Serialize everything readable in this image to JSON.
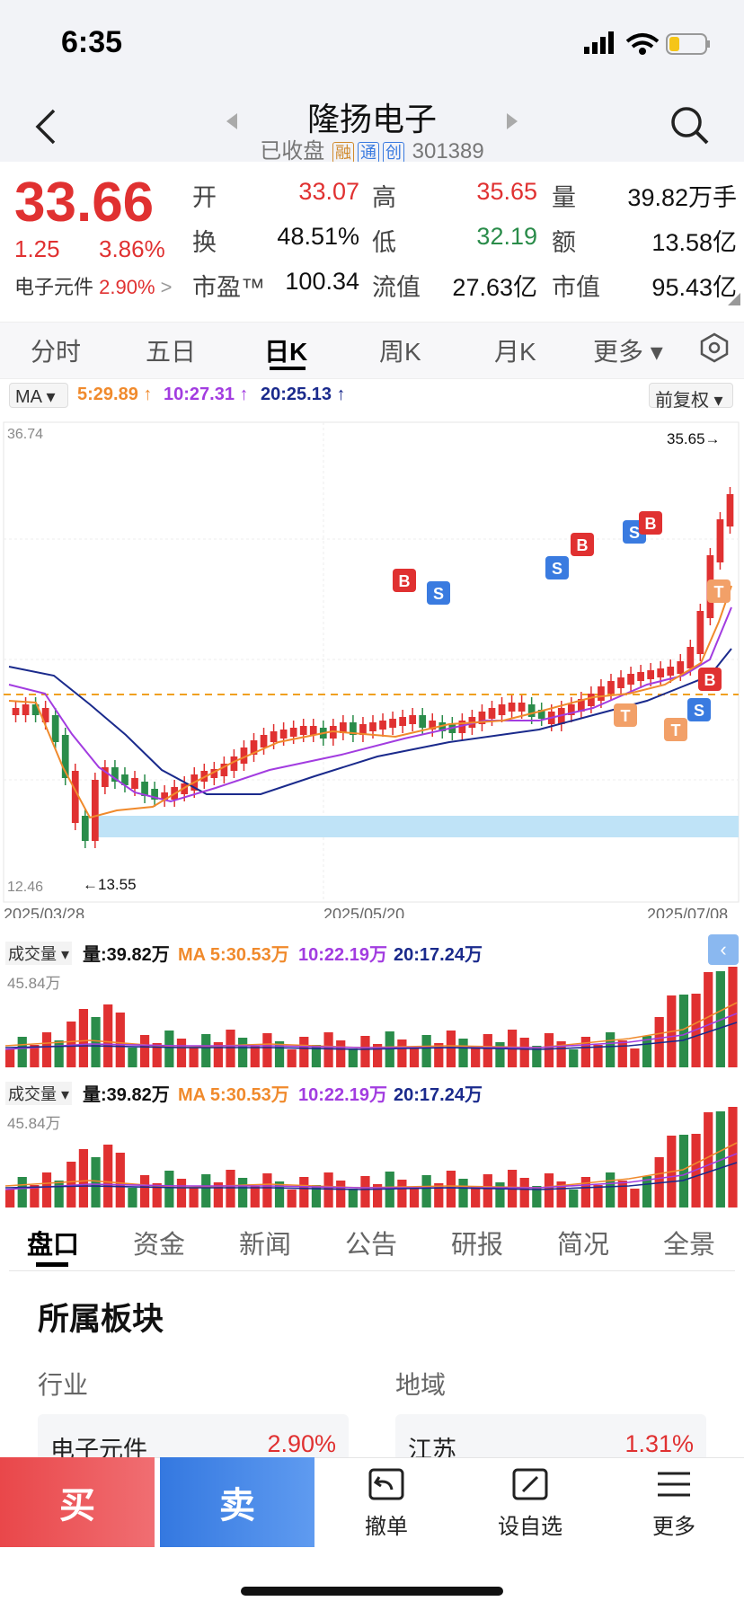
{
  "status_bar": {
    "time": "6:35"
  },
  "header": {
    "stock_name": "隆扬电子",
    "status": "已收盘",
    "tags": [
      "融",
      "通",
      "创"
    ],
    "code": "301389"
  },
  "quote": {
    "price": "33.66",
    "change": "1.25",
    "change_pct": "3.86%",
    "sector_name": "电子元件",
    "sector_pct": "2.90%",
    "stats": [
      {
        "label": "开",
        "value": "33.07",
        "color": "red"
      },
      {
        "label": "高",
        "value": "35.65",
        "color": "red"
      },
      {
        "label": "量",
        "value": "39.82万手",
        "color": "dark"
      },
      {
        "label": "换",
        "value": "48.51%",
        "color": "dark"
      },
      {
        "label": "低",
        "value": "32.19",
        "color": "green"
      },
      {
        "label": "额",
        "value": "13.58亿",
        "color": "dark"
      },
      {
        "label": "市盈™",
        "value": "100.34",
        "color": "dark"
      },
      {
        "label": "流值",
        "value": "27.63亿",
        "color": "dark"
      },
      {
        "label": "市值",
        "value": "95.43亿",
        "color": "dark"
      }
    ]
  },
  "chart_tabs": [
    "分时",
    "五日",
    "日K",
    "周K",
    "月K",
    "更多 ▾"
  ],
  "active_chart_tab": "日K",
  "ma_bar": {
    "selector": "MA ▾",
    "ma5": "5:29.89 ↑",
    "ma10": "10:27.31 ↑",
    "ma20": "20:25.13 ↑",
    "adjust": "前复权 ▾"
  },
  "kline": {
    "y_max_label": "36.74",
    "y_min_label": "12.46",
    "high_mark": "35.65→",
    "low_mark": "←13.55",
    "dates": [
      "2025/03/28",
      "2025/05/20",
      "2025/07/08"
    ]
  },
  "volume_panels": [
    {
      "selector": "成交量 ▾",
      "vol": "量:39.82万",
      "ma_label": "MA 5:30.53万",
      "ma10": "10:22.19万",
      "ma20": "20:17.24万",
      "max": "45.84万"
    },
    {
      "selector": "成交量 ▾",
      "vol": "量:39.82万",
      "ma_label": "MA 5:30.53万",
      "ma10": "10:22.19万",
      "ma20": "20:17.24万",
      "max": "45.84万"
    }
  ],
  "bottom_tabs": [
    "盘口",
    "资金",
    "新闻",
    "公告",
    "研报",
    "简况",
    "全景"
  ],
  "section": {
    "title": "所属板块",
    "industry_label": "行业",
    "region_label": "地域",
    "industry": {
      "name": "电子元件",
      "pct": "2.90%"
    },
    "region": {
      "name": "江苏",
      "pct": "1.31%"
    }
  },
  "actions": {
    "buy": "买",
    "sell": "卖",
    "cancel": "撤单",
    "watchlist": "设自选",
    "more": "更多"
  },
  "colors": {
    "up": "#e03131",
    "down": "#2a8c4a",
    "ma5": "#f08a2c",
    "ma10": "#a23ce0",
    "ma20": "#1a2a8c"
  }
}
